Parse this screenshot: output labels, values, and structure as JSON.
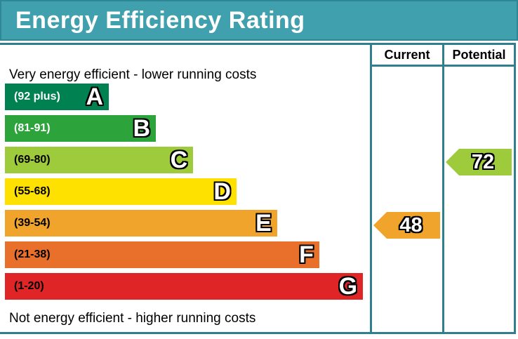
{
  "title": "Energy Efficiency Rating",
  "table": {
    "current_header": "Current",
    "potential_header": "Potential"
  },
  "notes": {
    "top": "Very energy efficient - lower running costs",
    "bottom": "Not energy efficient - higher running costs"
  },
  "bands": [
    {
      "letter": "A",
      "range": "(92 plus)",
      "color": "#008152",
      "label_color": "#ffffff",
      "width_pct": 28.1
    },
    {
      "letter": "B",
      "range": "(81-91)",
      "color": "#2da33c",
      "label_color": "#ffffff",
      "width_pct": 40.8
    },
    {
      "letter": "C",
      "range": "(69-80)",
      "color": "#9ecb3c",
      "label_color": "#000000",
      "width_pct": 50.9
    },
    {
      "letter": "D",
      "range": "(55-68)",
      "color": "#ffe100",
      "label_color": "#000000",
      "width_pct": 62.6
    },
    {
      "letter": "E",
      "range": "(39-54)",
      "color": "#f0a42c",
      "label_color": "#000000",
      "width_pct": 73.6
    },
    {
      "letter": "F",
      "range": "(21-38)",
      "color": "#e9702a",
      "label_color": "#000000",
      "width_pct": 85.0
    },
    {
      "letter": "G",
      "range": "(1-20)",
      "color": "#e02526",
      "label_color": "#000000",
      "width_pct": 96.8
    }
  ],
  "markers": {
    "current": {
      "value": "48",
      "band": "E",
      "band_index": 4,
      "color": "#f0a42c"
    },
    "potential": {
      "value": "72",
      "band": "C",
      "band_index": 2,
      "color": "#9ecb3c"
    }
  },
  "theme": {
    "banner_bg": "#41a0ad",
    "banner_border": "#2e8795",
    "banner_text": "#ffffff",
    "line_color": "#2f7f8f"
  },
  "chart_data": {
    "type": "bar",
    "orientation": "horizontal",
    "title": "Energy Efficiency Rating",
    "categories": [
      "A",
      "B",
      "C",
      "D",
      "E",
      "F",
      "G"
    ],
    "band_ranges": [
      "92 plus",
      "81-91",
      "69-80",
      "55-68",
      "39-54",
      "21-38",
      "1-20"
    ],
    "band_colors": [
      "#008152",
      "#2da33c",
      "#9ecb3c",
      "#ffe100",
      "#f0a42c",
      "#e9702a",
      "#e02526"
    ],
    "bar_lengths_pct": [
      28.1,
      40.8,
      50.9,
      62.6,
      73.6,
      85.0,
      96.8
    ],
    "series": [
      {
        "name": "Current",
        "values": [
          48
        ],
        "band": "E"
      },
      {
        "name": "Potential",
        "values": [
          72
        ],
        "band": "C"
      }
    ],
    "annotations": [
      "Very energy efficient - lower running costs",
      "Not energy efficient - higher running costs"
    ],
    "legend_position": "top-right-table",
    "grid": false
  }
}
